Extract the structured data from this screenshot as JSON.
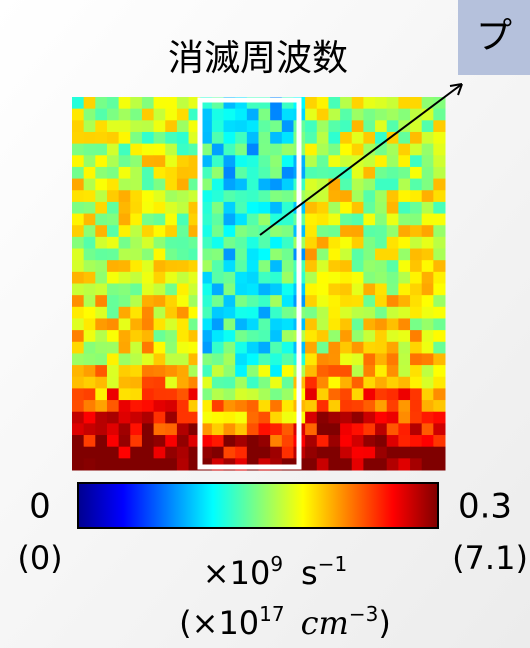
{
  "title": "消滅周波数",
  "callout": "プ",
  "colorbar": {
    "min_label": "0",
    "max_label": "0.3",
    "min_alt_label": "(0)",
    "max_alt_label": "(7.1)",
    "unit": [
      "×10",
      "9",
      "s",
      "−1"
    ],
    "alt_unit": [
      "(×10",
      "17",
      "cm",
      "−3",
      ")"
    ]
  }
}
